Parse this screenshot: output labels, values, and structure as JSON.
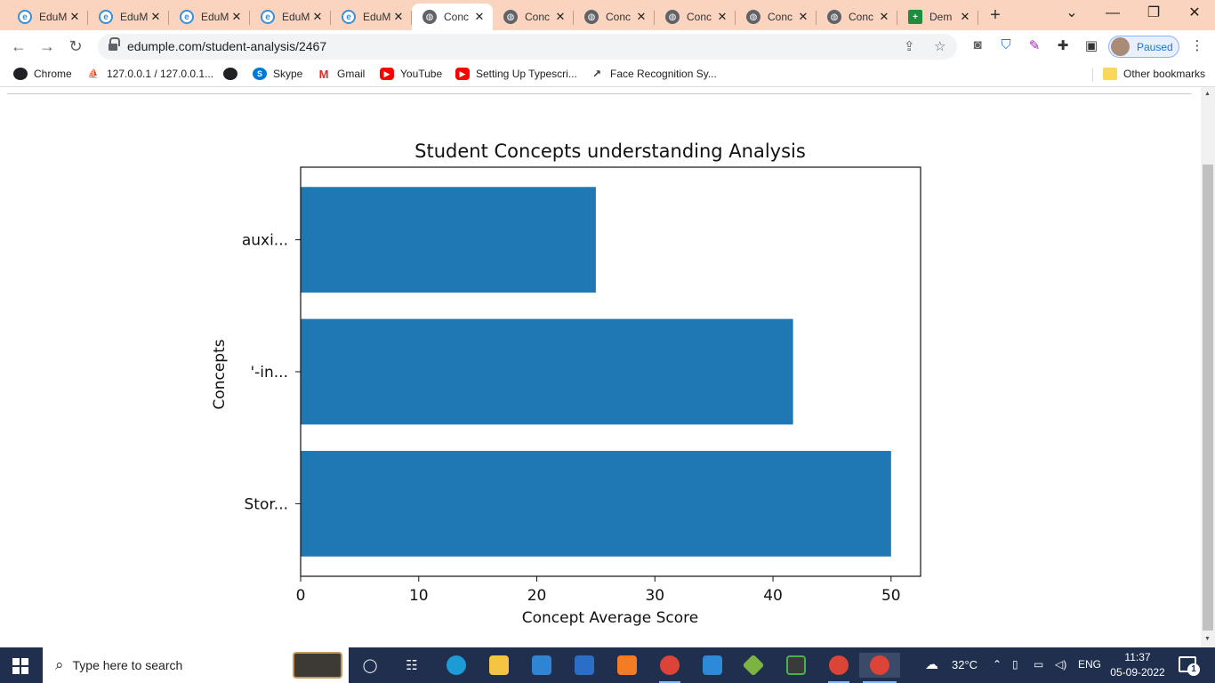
{
  "tabs": [
    {
      "title": "EduM",
      "icon": "edumple-favicon-icon",
      "active": false
    },
    {
      "title": "EduM",
      "icon": "edumple-favicon-icon",
      "active": false
    },
    {
      "title": "EduM",
      "icon": "edumple-favicon-icon",
      "active": false
    },
    {
      "title": "EduM",
      "icon": "edumple-favicon-icon",
      "active": false
    },
    {
      "title": "EduM",
      "icon": "edumple-favicon-icon",
      "active": false
    },
    {
      "title": "Conc",
      "icon": "globe-icon",
      "active": true
    },
    {
      "title": "Conc",
      "icon": "globe-icon",
      "active": false
    },
    {
      "title": "Conc",
      "icon": "globe-icon",
      "active": false
    },
    {
      "title": "Conc",
      "icon": "globe-icon",
      "active": false
    },
    {
      "title": "Conc",
      "icon": "globe-icon",
      "active": false
    },
    {
      "title": "Conc",
      "icon": "globe-icon",
      "active": false
    },
    {
      "title": "Dem",
      "icon": "google-sheets-icon",
      "active": false
    }
  ],
  "tab_close_glyph": "✕",
  "new_tab_glyph": "+",
  "address_bar": {
    "url": "edumple.com/student-analysis/2467"
  },
  "profile": {
    "label": "Paused"
  },
  "bookmarks": [
    {
      "label": "Chrome",
      "icon": "globe-icon"
    },
    {
      "label": "127.0.0.1 / 127.0.0.1...",
      "icon": "phpmyadmin-icon"
    },
    {
      "label": "",
      "icon": "globe-icon"
    },
    {
      "label": "Skype",
      "icon": "skype-icon"
    },
    {
      "label": "Gmail",
      "icon": "gmail-icon"
    },
    {
      "label": "YouTube",
      "icon": "youtube-icon"
    },
    {
      "label": "Setting Up Typescri...",
      "icon": "youtube-icon"
    },
    {
      "label": "Face Recognition Sy...",
      "icon": "chart-line-icon"
    }
  ],
  "other_bookmarks": "Other bookmarks",
  "chart_data": {
    "type": "bar",
    "orientation": "horizontal",
    "title": "Student Concepts understanding Analysis",
    "xlabel": "Concept Average Score",
    "ylabel": "Concepts",
    "categories": [
      "Stor...",
      "'-in...",
      "auxi..."
    ],
    "values": [
      50,
      41.7,
      25
    ],
    "xlim": [
      0,
      52.5
    ],
    "xticks": [
      "0",
      "10",
      "20",
      "30",
      "40",
      "50"
    ],
    "bar_color": "#1f77b4",
    "grid": false,
    "legend": "none"
  },
  "taskbar": {
    "search_placeholder": "Type here to search",
    "weather": "32°C",
    "language": "ENG",
    "time": "11:37",
    "date": "05-09-2022",
    "notifications": "1"
  }
}
